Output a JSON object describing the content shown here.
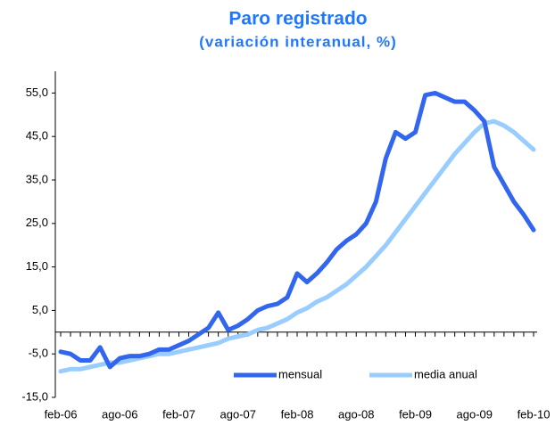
{
  "chart_data": {
    "type": "line",
    "title": "Paro registrado",
    "subtitle": "(variación interanual, %)",
    "categories": [
      "feb-06",
      null,
      null,
      null,
      null,
      null,
      "ago-06",
      null,
      null,
      null,
      null,
      null,
      "feb-07",
      null,
      null,
      null,
      null,
      null,
      "ago-07",
      null,
      null,
      null,
      null,
      null,
      "feb-08",
      null,
      null,
      null,
      null,
      null,
      "ago-08",
      null,
      null,
      null,
      null,
      null,
      "feb-09",
      null,
      null,
      null,
      null,
      null,
      "ago-09",
      null,
      null,
      null,
      null,
      null,
      "feb-10"
    ],
    "series": [
      {
        "name": "mensual",
        "color": "#3366ee",
        "values": [
          -4.5,
          -5,
          -6.5,
          -6.5,
          -3.5,
          -8,
          -6,
          -5.5,
          -5.5,
          -5,
          -4,
          -4,
          -3,
          -2,
          -0.5,
          1,
          4.5,
          0.5,
          1.5,
          3,
          5,
          6,
          6.5,
          8,
          13.5,
          11.5,
          13.5,
          16,
          19,
          21,
          22.5,
          25,
          30,
          40,
          46,
          44.5,
          46,
          54.5,
          55,
          54,
          53,
          53,
          51,
          48.5,
          38,
          34,
          30,
          27,
          23.5
        ]
      },
      {
        "name": "media anual",
        "color": "#99ccff",
        "values": [
          -9,
          -8.5,
          -8.5,
          -8,
          -7.5,
          -7,
          -7,
          -6.5,
          -6,
          -5.5,
          -5,
          -5,
          -4.5,
          -4,
          -3.5,
          -3,
          -2.5,
          -1.5,
          -1,
          -0.5,
          0.5,
          1,
          2,
          3,
          4.5,
          5.5,
          7,
          8,
          9.5,
          11,
          13,
          15,
          17.5,
          20,
          23,
          26,
          29,
          32,
          35,
          38,
          41,
          43.5,
          46,
          48,
          48.5,
          47.5,
          46,
          44,
          42
        ]
      }
    ],
    "ylim": [
      -15,
      60
    ],
    "yticks": [
      {
        "value": -15,
        "label": "-15,0"
      },
      {
        "value": -5,
        "label": "-5,0"
      },
      {
        "value": 5,
        "label": "5,0"
      },
      {
        "value": 15,
        "label": "15,0"
      },
      {
        "value": 25,
        "label": "25,0"
      },
      {
        "value": 35,
        "label": "35,0"
      },
      {
        "value": 45,
        "label": "45,0"
      },
      {
        "value": 55,
        "label": "55,0"
      }
    ],
    "grid": false,
    "legend": "bottom"
  }
}
